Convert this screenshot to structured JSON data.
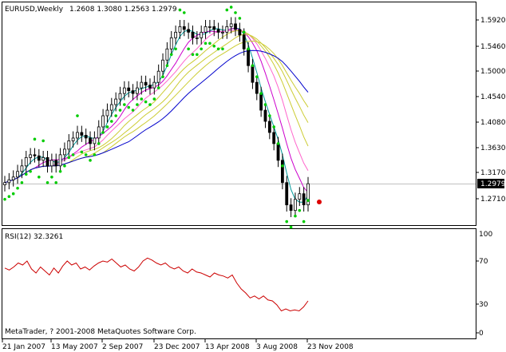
{
  "main_panel": {
    "symbol_label": "EURUSD,Weekly",
    "ohlc_label": "1.2608 1.3080 1.2563 1.2979",
    "price_ticks": [
      "1.5920",
      "1.5460",
      "1.5000",
      "1.4540",
      "1.4080",
      "1.3630",
      "1.3170",
      "1.2710"
    ],
    "current_price": "1.2979"
  },
  "rsi_panel": {
    "label": "RSI(12) 32.3261",
    "ticks": [
      "100",
      "70",
      "30",
      "0"
    ],
    "copyright": "MetaTrader, ? 2001-2008 MetaQuotes Software Corp."
  },
  "x_axis": {
    "labels": [
      "21 Jan 2007",
      "13 May 2007",
      "2 Sep 2007",
      "23 Dec 2007",
      "13 Apr 2008",
      "3 Aug 2008",
      "23 Nov 2008"
    ]
  },
  "colors": {
    "background": "#ffffff",
    "candle": "#000000",
    "parabolic_sar": "#00cc00",
    "ma_blue": "#0000cc",
    "ma_magenta": "#cc00cc",
    "ma_pink": "#ff66cc",
    "ma_yellowgreen": "#cccc33",
    "ma_teal": "#009999",
    "rsi_line": "#cc0000",
    "signal_dot": "#dd0000"
  },
  "chart_data": {
    "type": "line",
    "series": [
      {
        "values": [
          1.3,
          1.305,
          1.31,
          1.32,
          1.33,
          1.345,
          1.35,
          1.348,
          1.34,
          1.345,
          1.33,
          1.34,
          1.33,
          1.35,
          1.36,
          1.375,
          1.38,
          1.39,
          1.385,
          1.38,
          1.37,
          1.38,
          1.4,
          1.42,
          1.43,
          1.44,
          1.45,
          1.46,
          1.47,
          1.465,
          1.46,
          1.47,
          1.48,
          1.475,
          1.47,
          1.48,
          1.5,
          1.52,
          1.54,
          1.56,
          1.57,
          1.58,
          1.575,
          1.57,
          1.56,
          1.56,
          1.57,
          1.58,
          1.58,
          1.575,
          1.57,
          1.57,
          1.58,
          1.585,
          1.575,
          1.565,
          1.54,
          1.51,
          1.48,
          1.46,
          1.43,
          1.41,
          1.39,
          1.37,
          1.34,
          1.3,
          1.26,
          1.25,
          1.27,
          1.28,
          1.26,
          1.298
        ]
      },
      {
        "values": [
          65,
          63,
          66,
          70,
          68,
          72,
          64,
          60,
          66,
          62,
          58,
          65,
          60,
          67,
          72,
          68,
          70,
          64,
          66,
          63,
          67,
          70,
          72,
          71,
          74,
          70,
          66,
          68,
          64,
          62,
          66,
          72,
          75,
          73,
          70,
          68,
          70,
          66,
          64,
          66,
          62,
          60,
          64,
          61,
          60,
          58,
          56,
          60,
          58,
          57,
          55,
          58,
          50,
          44,
          40,
          35,
          37,
          34,
          37,
          33,
          32,
          28,
          22,
          24,
          22,
          23,
          22,
          26,
          32
        ]
      }
    ]
  }
}
